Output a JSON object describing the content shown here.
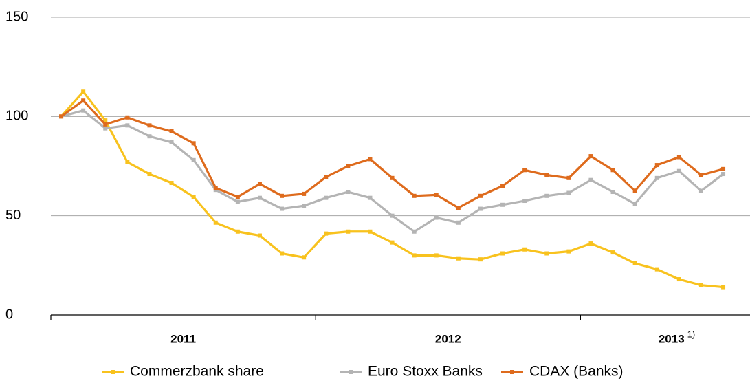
{
  "chart_data": {
    "type": "line",
    "categories": [
      null,
      null,
      null,
      null,
      null,
      null,
      null,
      null,
      null,
      null,
      null,
      null,
      null,
      null,
      null,
      null,
      null,
      null,
      null,
      null,
      null,
      null,
      null,
      null,
      null,
      null,
      null,
      null,
      null,
      null,
      null
    ],
    "groups": [
      "2011",
      "2012",
      "2013"
    ],
    "footnote": "1)",
    "series": [
      {
        "name": "Commerzbank share",
        "color": "#f8c21e",
        "values": [
          100,
          112.5,
          98,
          77,
          71,
          66.5,
          59.5,
          46.5,
          42,
          40,
          31,
          29,
          41,
          42,
          42,
          36.5,
          30,
          30,
          28.5,
          28,
          31,
          33,
          31,
          32,
          36,
          31.5,
          26,
          23,
          18,
          15,
          14
        ]
      },
      {
        "name": "Euro Stoxx Banks",
        "color": "#b4b4b4",
        "values": [
          100,
          103,
          94,
          95.5,
          90,
          87,
          78,
          63,
          57,
          59,
          53.5,
          55,
          59,
          62,
          59,
          50,
          42,
          49,
          46.5,
          53.5,
          55.5,
          57.5,
          60,
          61.5,
          68,
          62,
          56,
          69,
          72.5,
          62.5,
          71
        ]
      },
      {
        "name": "CDAX (Banks)",
        "color": "#de6b1d",
        "values": [
          100,
          108,
          96,
          99.5,
          95.5,
          92.5,
          86.5,
          64,
          59.5,
          66,
          60,
          61,
          69.5,
          75,
          78.5,
          69,
          60,
          60.5,
          54,
          60,
          65,
          73,
          70.5,
          69,
          80,
          73,
          62.5,
          75.5,
          79.5,
          70.5,
          73.5
        ]
      }
    ],
    "ylim": [
      0,
      150
    ],
    "yticks": [
      0,
      50,
      100,
      150
    ],
    "grid": true
  }
}
